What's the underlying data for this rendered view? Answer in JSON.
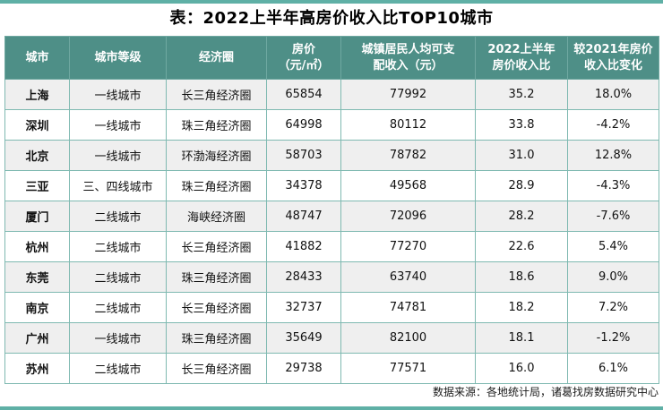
{
  "title": "表：2022上半年高房价收入比TOP10城市",
  "footer": {
    "source": "数据来源：各地统计局，诸葛找房数据研究中心"
  },
  "colors": {
    "accent_bar": "#5fb0a6",
    "header_bg": "#4e8f87",
    "header_text": "#ffffff",
    "border": "#7fb9b1",
    "row_alt_bg": "#efefef",
    "row_bg": "#ffffff"
  },
  "table": {
    "header_lines": [
      "城市",
      "城市等级",
      "经济圈",
      "房价\n（元/㎡）",
      "城镇居民人均可支\n配收入（元）",
      "2022上半年\n房价收入比",
      "较2021年房价\n收入比变化"
    ],
    "rows": [
      {
        "cells": [
          "上海",
          "一线城市",
          "长三角经济圈",
          "65854",
          "77992",
          "35.2",
          "18.0%"
        ]
      },
      {
        "cells": [
          "深圳",
          "一线城市",
          "珠三角经济圈",
          "64998",
          "80112",
          "33.8",
          "-4.2%"
        ]
      },
      {
        "cells": [
          "北京",
          "一线城市",
          "环渤海经济圈",
          "58703",
          "78782",
          "31.0",
          "12.8%"
        ]
      },
      {
        "cells": [
          "三亚",
          "三、四线城市",
          "珠三角经济圈",
          "34378",
          "49568",
          "28.9",
          "-4.3%"
        ]
      },
      {
        "cells": [
          "厦门",
          "二线城市",
          "海峡经济圈",
          "48747",
          "72096",
          "28.2",
          "-7.6%"
        ]
      },
      {
        "cells": [
          "杭州",
          "二线城市",
          "长三角经济圈",
          "41882",
          "77270",
          "22.6",
          "5.4%"
        ]
      },
      {
        "cells": [
          "东莞",
          "二线城市",
          "珠三角经济圈",
          "28433",
          "63740",
          "18.6",
          "9.0%"
        ]
      },
      {
        "cells": [
          "南京",
          "二线城市",
          "长三角经济圈",
          "32737",
          "74781",
          "18.2",
          "7.2%"
        ]
      },
      {
        "cells": [
          "广州",
          "一线城市",
          "珠三角经济圈",
          "35649",
          "82100",
          "18.1",
          "-1.2%"
        ]
      },
      {
        "cells": [
          "苏州",
          "二线城市",
          "长三角经济圈",
          "29738",
          "77571",
          "16.0",
          "6.1%"
        ]
      }
    ]
  },
  "chart_data": {
    "type": "table",
    "title": "表：2022上半年高房价收入比TOP10城市",
    "columns": [
      "城市",
      "城市等级",
      "经济圈",
      "房价（元/㎡）",
      "城镇居民人均可支配收入（元）",
      "2022上半年房价收入比",
      "较2021年房价收入比变化"
    ],
    "rows": [
      [
        "上海",
        "一线城市",
        "长三角经济圈",
        65854,
        77992,
        35.2,
        "18.0%"
      ],
      [
        "深圳",
        "一线城市",
        "珠三角经济圈",
        64998,
        80112,
        33.8,
        "-4.2%"
      ],
      [
        "北京",
        "一线城市",
        "环渤海经济圈",
        58703,
        78782,
        31.0,
        "12.8%"
      ],
      [
        "三亚",
        "三、四线城市",
        "珠三角经济圈",
        34378,
        49568,
        28.9,
        "-4.3%"
      ],
      [
        "厦门",
        "二线城市",
        "海峡经济圈",
        48747,
        72096,
        28.2,
        "-7.6%"
      ],
      [
        "杭州",
        "二线城市",
        "长三角经济圈",
        41882,
        77270,
        22.6,
        "5.4%"
      ],
      [
        "东莞",
        "二线城市",
        "珠三角经济圈",
        28433,
        63740,
        18.6,
        "9.0%"
      ],
      [
        "南京",
        "二线城市",
        "长三角经济圈",
        32737,
        74781,
        18.2,
        "7.2%"
      ],
      [
        "广州",
        "一线城市",
        "珠三角经济圈",
        35649,
        82100,
        18.1,
        "-1.2%"
      ],
      [
        "苏州",
        "二线城市",
        "长三角经济圈",
        29738,
        77571,
        16.0,
        "6.1%"
      ]
    ],
    "source": "数据来源：各地统计局，诸葛找房数据研究中心"
  }
}
